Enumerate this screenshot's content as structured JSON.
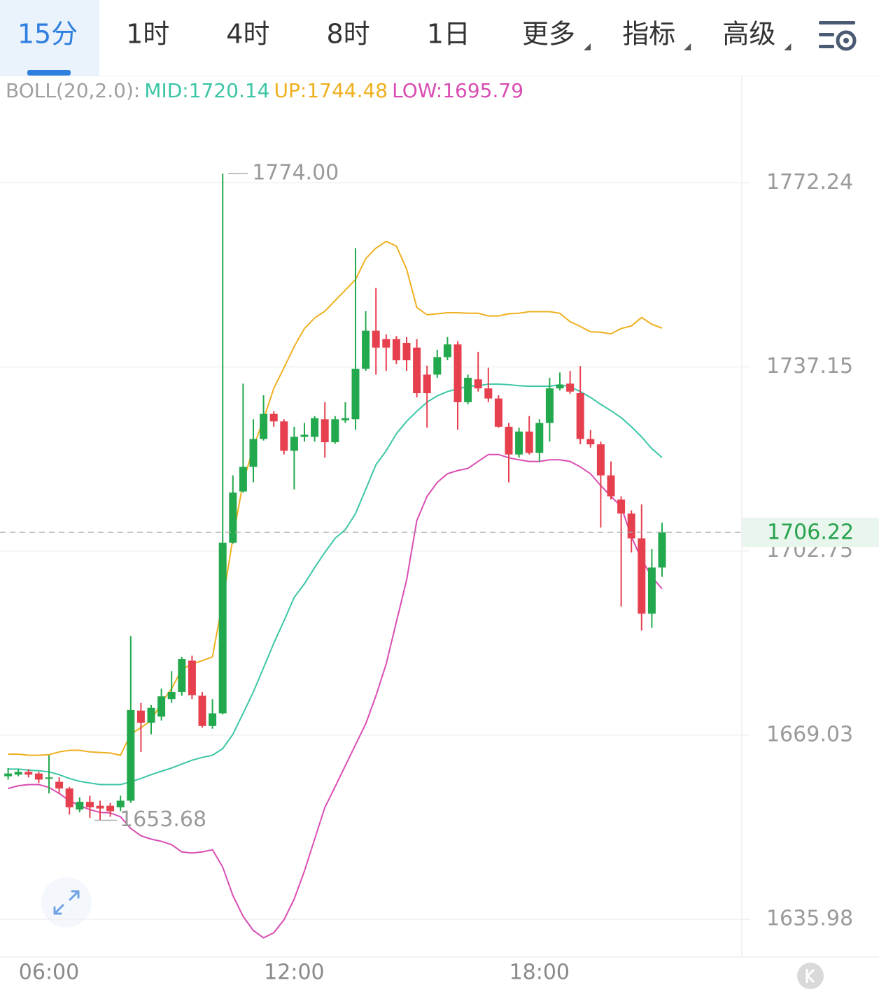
{
  "tabs": [
    {
      "label": "15分",
      "selected": true
    },
    {
      "label": "1时"
    },
    {
      "label": "4时"
    },
    {
      "label": "8时"
    },
    {
      "label": "1日"
    },
    {
      "label": "更多",
      "dropdown": true
    },
    {
      "label": "指标",
      "dropdown": true
    },
    {
      "label": "高级",
      "dropdown": true
    }
  ],
  "chart_data": {
    "type": "candlestick",
    "indicator_label": "BOLL(20,2.0):",
    "categories": [
      null,
      null,
      null,
      null,
      "06:00",
      null,
      null,
      null,
      null,
      null,
      null,
      null,
      null,
      null,
      null,
      null,
      null,
      null,
      null,
      null,
      null,
      null,
      null,
      null,
      null,
      null,
      null,
      null,
      "12:00",
      null,
      null,
      null,
      null,
      null,
      null,
      null,
      null,
      null,
      null,
      null,
      null,
      null,
      null,
      null,
      null,
      null,
      null,
      null,
      null,
      null,
      null,
      null,
      "18:00",
      null,
      null,
      null,
      null,
      null,
      null,
      null,
      null,
      null,
      null,
      null,
      null
    ],
    "open": [
      1661.6,
      1661.9,
      1662.4,
      1662.1,
      1661.2,
      1660.6,
      1659.4,
      1655.6,
      1657.0,
      1656.3,
      1656.3,
      1656.0,
      1657.2,
      1673.5,
      1671.3,
      1672.4,
      1675.6,
      1676.9,
      1682.6,
      1676.2,
      1670.7,
      1673.0,
      1704.3,
      1713.8,
      1718.4,
      1723.6,
      1728.3,
      1726.9,
      1721.4,
      1724.0,
      1724.0,
      1727.3,
      1723.0,
      1727.1,
      1727.3,
      1736.8,
      1744.0,
      1742.4,
      1742.4,
      1741.7,
      1740.8,
      1735.7,
      1735.7,
      1739.0,
      1741.4,
      1730.5,
      1734.8,
      1733.1,
      1731.2,
      1725.9,
      1720.7,
      1725.0,
      1721.0,
      1726.6,
      1733.1,
      1734.0,
      1732.2,
      1723.6,
      1722.6,
      1716.8,
      1712.3,
      1709.7,
      1705.1,
      1691.2,
      1699.7
    ],
    "high": [
      1663.1,
      1662.9,
      1662.9,
      1662.4,
      1665.4,
      1661.4,
      1659.7,
      1657.8,
      1658.1,
      1657.2,
      1656.8,
      1658.1,
      1687.1,
      1674.9,
      1674.5,
      1677.5,
      1680.7,
      1683.3,
      1683.5,
      1676.9,
      1675.6,
      1774,
      1716.8,
      1734.0,
      1727.3,
      1731.8,
      1728.8,
      1727.3,
      1725.9,
      1726.6,
      1727.9,
      1730.5,
      1727.9,
      1730.5,
      1759.7,
      1747.7,
      1752.1,
      1743.3,
      1743.0,
      1742.8,
      1742.4,
      1737.4,
      1740.4,
      1742.8,
      1742.0,
      1735.7,
      1740.0,
      1737.0,
      1731.8,
      1726.6,
      1725.7,
      1727.9,
      1727.3,
      1735.1,
      1736.1,
      1736.4,
      1737.3,
      1725.3,
      1723.1,
      1719.4,
      1712.9,
      1710.3,
      1711.4,
      1703.1,
      1708.0
    ],
    "low": [
      1661.0,
      1661.6,
      1661.4,
      1660.4,
      1658.5,
      1658.5,
      1654.7,
      1655.1,
      1654.1,
      1653.68,
      1654.3,
      1655.3,
      1656.8,
      1666.0,
      1669.2,
      1671.7,
      1674.9,
      1676.2,
      1675.6,
      1670.4,
      1670.2,
      1672.8,
      1704.1,
      1713.6,
      1715.5,
      1723.3,
      1725.9,
      1720.7,
      1714.2,
      1723.1,
      1723.1,
      1720.1,
      1722.7,
      1726.6,
      1725.3,
      1736.4,
      1735.7,
      1736.4,
      1737.7,
      1736.4,
      1731.4,
      1725.7,
      1735.1,
      1738.4,
      1725.3,
      1730.1,
      1732.5,
      1730.5,
      1725.7,
      1715.5,
      1720.1,
      1720.7,
      1719.4,
      1723.1,
      1732.7,
      1732.1,
      1722.6,
      1722.0,
      1707.1,
      1712.3,
      1692.5,
      1702.5,
      1688.1,
      1688.6,
      1698.0
    ],
    "close": [
      1662.1,
      1662.4,
      1661.9,
      1661.0,
      1661.4,
      1659.4,
      1656.0,
      1657.0,
      1656.0,
      1655.8,
      1655.3,
      1657.2,
      1673.6,
      1671.3,
      1674.0,
      1676.1,
      1676.9,
      1682.9,
      1676.3,
      1670.7,
      1673.0,
      1704.3,
      1713.6,
      1718.4,
      1723.6,
      1728.3,
      1726.9,
      1721.4,
      1724.0,
      1724.4,
      1727.5,
      1723.0,
      1727.3,
      1727.5,
      1736.8,
      1744.0,
      1740.8,
      1740.8,
      1738.4,
      1738.4,
      1732.2,
      1732.2,
      1739.0,
      1741.4,
      1730.5,
      1735.1,
      1733.1,
      1731.2,
      1725.9,
      1720.7,
      1725.0,
      1721.0,
      1726.6,
      1733.1,
      1733.8,
      1732.5,
      1723.6,
      1722.6,
      1716.8,
      1712.9,
      1709.7,
      1705.1,
      1691.2,
      1699.7,
      1706.22
    ],
    "up_color": "#23a94d",
    "down_color": "#e6404f",
    "series": [
      {
        "name": "MID:1720.14",
        "color": "#3cc6a6",
        "values": [
          1662.9,
          1662.9,
          1662.7,
          1662.6,
          1662.4,
          1661.9,
          1661.2,
          1660.7,
          1660.4,
          1660.1,
          1660.1,
          1660.1,
          1660.6,
          1661.2,
          1661.9,
          1662.5,
          1663.1,
          1663.8,
          1664.5,
          1665.0,
          1665.4,
          1666.6,
          1669.2,
          1673.0,
          1676.9,
          1681.3,
          1685.8,
          1689.9,
          1694.2,
          1696.7,
          1699.7,
          1702.5,
          1705.1,
          1706.7,
          1709.7,
          1714.2,
          1718.8,
          1721.4,
          1724.6,
          1726.9,
          1728.8,
          1730.5,
          1731.7,
          1732.5,
          1733.0,
          1733.5,
          1733.6,
          1733.9,
          1733.9,
          1733.8,
          1733.6,
          1733.5,
          1733.5,
          1733.5,
          1733.8,
          1733.4,
          1732.5,
          1731.4,
          1730.1,
          1728.9,
          1727.6,
          1725.9,
          1724.0,
          1721.8,
          1720.14
        ]
      },
      {
        "name": "UP:1744.48",
        "color": "#efb020",
        "values": [
          1665.6,
          1665.6,
          1665.4,
          1665.4,
          1665.5,
          1666.0,
          1666.3,
          1666.3,
          1666.0,
          1665.9,
          1665.8,
          1665.4,
          1669.2,
          1670.4,
          1671.7,
          1674.9,
          1677.5,
          1681.0,
          1682.0,
          1682.6,
          1683.3,
          1693.5,
          1705.1,
          1715.5,
          1722.0,
          1727.3,
          1733.1,
          1737.0,
          1741.0,
          1744.4,
          1746.4,
          1747.7,
          1749.7,
          1751.7,
          1753.7,
          1757.7,
          1759.7,
          1761.0,
          1760.1,
          1755.7,
          1748.4,
          1747.0,
          1747.2,
          1747.4,
          1747.4,
          1747.3,
          1747.3,
          1746.8,
          1746.8,
          1747.2,
          1747.3,
          1747.6,
          1747.6,
          1747.6,
          1747.3,
          1745.7,
          1744.8,
          1743.8,
          1743.7,
          1743.4,
          1744.4,
          1744.9,
          1746.5,
          1745.2,
          1744.48
        ]
      },
      {
        "name": "LOW:1695.79",
        "color": "#d94db3",
        "values": [
          1659.4,
          1659.9,
          1660.1,
          1660.1,
          1659.6,
          1658.5,
          1657.2,
          1656.3,
          1655.6,
          1655.1,
          1655.0,
          1654.3,
          1652.2,
          1650.9,
          1650.3,
          1649.9,
          1649.3,
          1648.0,
          1647.8,
          1648.0,
          1648.4,
          1645.3,
          1640.2,
          1636.5,
          1634.0,
          1632.7,
          1633.6,
          1635.9,
          1639.6,
          1644.6,
          1650.3,
          1656.0,
          1659.7,
          1663.5,
          1667.3,
          1671.1,
          1676.2,
          1682.0,
          1689.7,
          1697.4,
          1708.4,
          1712.9,
          1715.5,
          1717.1,
          1717.7,
          1718.1,
          1719.4,
          1720.7,
          1720.7,
          1720.1,
          1719.7,
          1719.4,
          1719.4,
          1719.7,
          1719.7,
          1719.4,
          1718.4,
          1717.1,
          1714.9,
          1712.9,
          1711.0,
          1705.4,
          1701.2,
          1698.0,
          1695.79
        ]
      }
    ],
    "max_label": {
      "value": 1774,
      "label": "1774.00"
    },
    "min_label": 1653.68,
    "ylim": [
      1629.3,
      1793.0
    ],
    "yticks": [
      1772.24,
      1737.15,
      1702.75,
      1669.03,
      1635.98
    ],
    "log_scale": true,
    "grid": true
  }
}
